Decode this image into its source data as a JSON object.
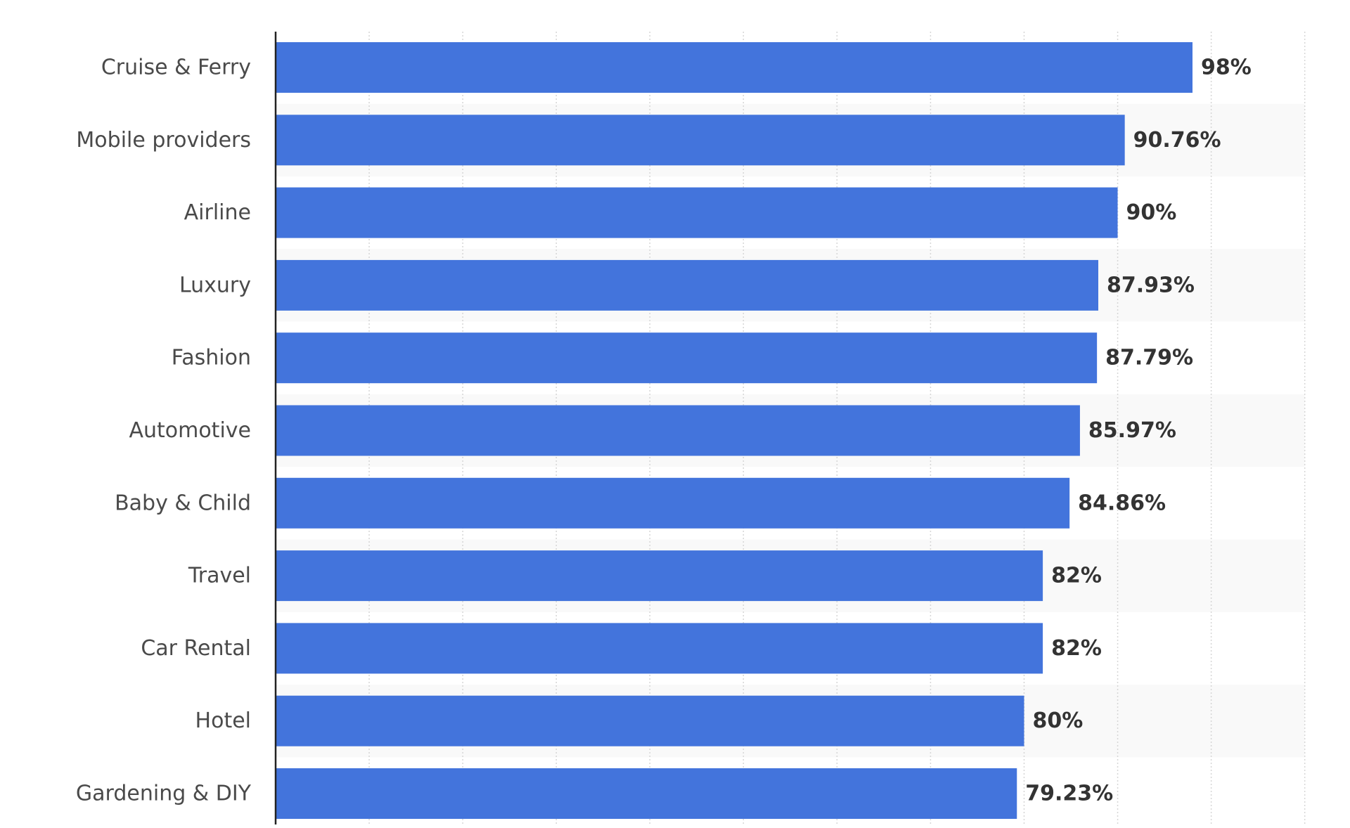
{
  "chart_data": {
    "type": "bar",
    "orientation": "horizontal",
    "categories": [
      "Cruise & Ferry",
      "Mobile providers",
      "Airline",
      "Luxury",
      "Fashion",
      "Automotive",
      "Baby & Child",
      "Travel",
      "Car Rental",
      "Hotel",
      "Gardening & DIY"
    ],
    "values": [
      98,
      90.76,
      90,
      87.93,
      87.79,
      85.97,
      84.86,
      82,
      82,
      80,
      79.23
    ],
    "value_labels": [
      "98%",
      "90.76%",
      "90%",
      "87.93%",
      "87.79%",
      "85.97%",
      "84.86%",
      "82%",
      "82%",
      "80%",
      "79.23%"
    ],
    "title": "",
    "xlabel": "",
    "ylabel": "",
    "xlim": [
      0,
      110
    ],
    "x_tick_step": 10,
    "grid": true,
    "grid_style": "dotted vertical",
    "bar_color": "#4374dc",
    "alternating_row_shade": "#f9f9f9",
    "value_label_color": "#333333",
    "category_label_color": "#4a4a4a",
    "axis_color": "#222222",
    "grid_color": "#d6d6d6"
  }
}
